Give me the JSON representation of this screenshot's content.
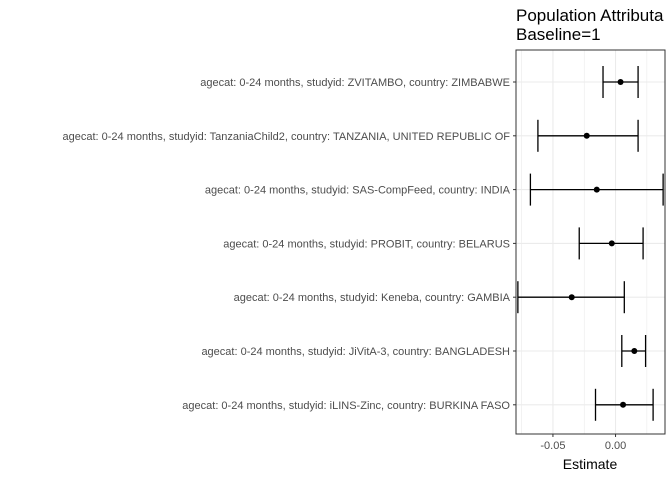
{
  "chart_data": {
    "type": "scatter",
    "title": [
      "Population Attributa",
      "Baseline=1"
    ],
    "xlabel": "Estimate",
    "ylabel": "",
    "xlim": [
      -0.0795,
      0.0395
    ],
    "x_ticks": [
      -0.05,
      0.0
    ],
    "x_tick_labels": [
      "-0.05",
      "0.00"
    ],
    "grid": true,
    "legend": "none",
    "colors": {
      "panel_bg": "#ffffff",
      "grid": "#ebebeb",
      "border": "#333333",
      "marks": "#000000"
    },
    "categories": [
      "agecat: 0-24 months, studyid: ZVITAMBO, country: ZIMBABWE",
      "agecat: 0-24 months, studyid: TanzaniaChild2, country: TANZANIA, UNITED REPUBLIC OF",
      "agecat: 0-24 months, studyid: SAS-CompFeed, country: INDIA",
      "agecat: 0-24 months, studyid: PROBIT, country: BELARUS",
      "agecat: 0-24 months, studyid: Keneba, country: GAMBIA",
      "agecat: 0-24 months, studyid: JiVitA-3, country: BANGLADESH",
      "agecat: 0-24 months, studyid: iLINS-Zinc, country: BURKINA FASO"
    ],
    "estimate": [
      0.004,
      -0.023,
      -0.015,
      -0.003,
      -0.035,
      0.015,
      0.006
    ],
    "lower": [
      -0.01,
      -0.062,
      -0.068,
      -0.029,
      -0.078,
      0.005,
      -0.016
    ],
    "upper": [
      0.018,
      0.018,
      0.038,
      0.022,
      0.007,
      0.024,
      0.03
    ]
  }
}
